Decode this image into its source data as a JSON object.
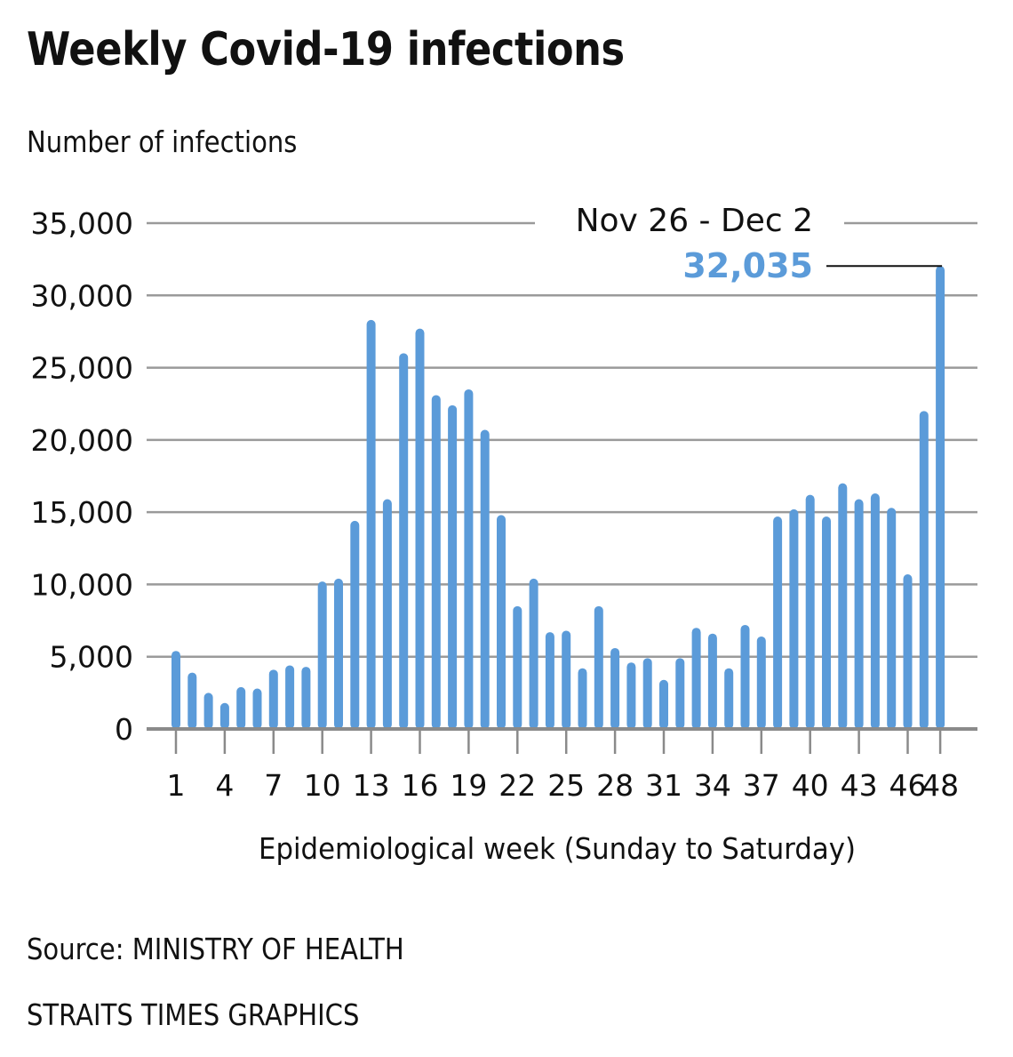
{
  "title": "Weekly Covid-19 infections",
  "source": "Source: MINISTRY OF HEALTH",
  "credit": "STRAITS TIMES GRAPHICS",
  "chart_data": {
    "type": "bar",
    "title": "Weekly Covid-19 infections",
    "ylabel": "Number of infections",
    "xlabel": "Epidemiological week (Sunday to Saturday)",
    "ylim": [
      0,
      35000
    ],
    "yticks": [
      0,
      5000,
      10000,
      15000,
      20000,
      25000,
      30000,
      35000
    ],
    "ytick_labels": [
      "0",
      "5,000",
      "10,000",
      "15,000",
      "20,000",
      "25,000",
      "30,000",
      "35,000"
    ],
    "xtick_labels": [
      "1",
      "4",
      "7",
      "10",
      "13",
      "16",
      "19",
      "22",
      "25",
      "28",
      "31",
      "34",
      "37",
      "40",
      "43",
      "46",
      "48"
    ],
    "grid": true,
    "bar_color": "#5b9bd9",
    "categories": [
      1,
      2,
      3,
      4,
      5,
      6,
      7,
      8,
      9,
      10,
      11,
      12,
      13,
      14,
      15,
      16,
      17,
      18,
      19,
      20,
      21,
      22,
      23,
      24,
      25,
      26,
      27,
      28,
      29,
      30,
      31,
      32,
      33,
      34,
      35,
      36,
      37,
      38,
      39,
      40,
      41,
      42,
      43,
      44,
      45,
      46,
      47,
      48
    ],
    "values": [
      5400,
      3900,
      2500,
      1800,
      2900,
      2800,
      4100,
      4400,
      4300,
      10200,
      10400,
      14400,
      28300,
      15900,
      26000,
      27700,
      23100,
      22400,
      23500,
      20700,
      14800,
      8500,
      10400,
      6700,
      6800,
      4200,
      8500,
      5600,
      4600,
      4900,
      3400,
      4900,
      7000,
      6600,
      4200,
      7200,
      6400,
      14700,
      15200,
      16200,
      14700,
      17000,
      15900,
      16300,
      15300,
      10700,
      22000,
      32035
    ],
    "annotation": {
      "week": 48,
      "date_range": "Nov 26 - Dec 2",
      "value_label": "32,035"
    }
  }
}
